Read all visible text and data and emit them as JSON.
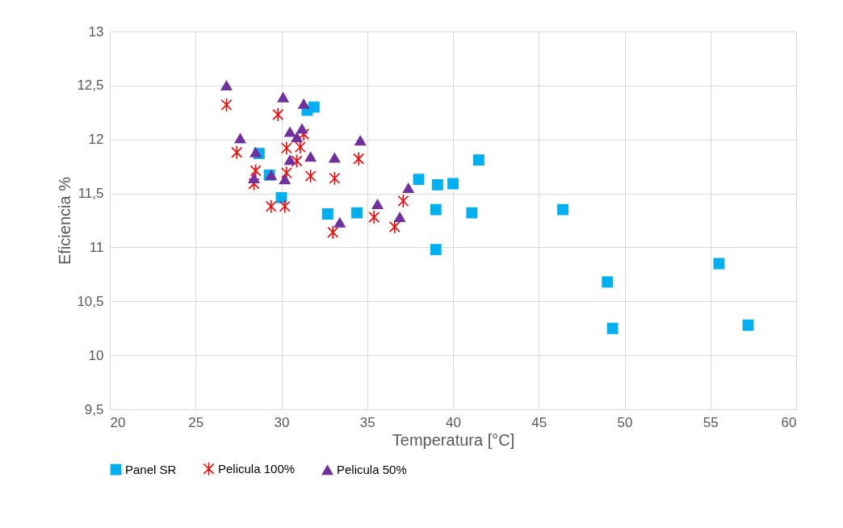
{
  "chart_data": {
    "type": "scatter",
    "xlabel": "Temperatura [°C]",
    "ylabel": "Eficiencia %",
    "xlim": [
      20,
      60
    ],
    "xticks": [
      20,
      25,
      30,
      35,
      40,
      45,
      50,
      55,
      60
    ],
    "ylim": [
      9.5,
      13
    ],
    "yticks": [
      {
        "value": 9.5,
        "label": "9,5"
      },
      10,
      {
        "value": 10.5,
        "label": "10,5"
      },
      11,
      {
        "value": 11.5,
        "label": "11,5"
      },
      12,
      {
        "value": 12.5,
        "label": "12,5"
      },
      13
    ],
    "grid": true,
    "legend": "bottom",
    "series": [
      {
        "name": "Panel SR",
        "color": "#00b0f0",
        "marker": "square",
        "x": [
          28.7,
          29.3,
          30.0,
          31.5,
          31.9,
          32.7,
          34.4,
          38.0,
          39.1,
          40.0,
          41.5,
          39.0,
          39.0,
          41.1,
          46.4,
          49.0,
          49.3,
          55.5,
          57.2
        ],
        "values": [
          11.87,
          11.67,
          11.46,
          12.27,
          12.3,
          11.31,
          11.32,
          11.63,
          11.58,
          11.59,
          11.81,
          11.35,
          10.98,
          11.32,
          11.35,
          10.68,
          10.25,
          10.85,
          10.28
        ]
      },
      {
        "name": "Pelicula 100%",
        "color": "#ff0000",
        "marker": "cross",
        "x": [
          26.8,
          27.4,
          28.5,
          28.4,
          29.8,
          29.4,
          30.3,
          30.2,
          31.1,
          30.9,
          30.3,
          31.3,
          31.7,
          33.1,
          34.5,
          33.0,
          35.4,
          36.6,
          37.1
        ],
        "values": [
          12.32,
          11.88,
          11.71,
          11.59,
          12.23,
          11.38,
          11.92,
          11.38,
          11.93,
          11.8,
          11.69,
          12.05,
          11.66,
          11.64,
          11.82,
          11.14,
          11.28,
          11.19,
          11.43
        ]
      },
      {
        "name": "Pelicula 50%",
        "color": "#7030a0",
        "marker": "triangle",
        "x": [
          26.8,
          27.6,
          28.5,
          28.4,
          29.4,
          30.1,
          30.5,
          30.9,
          31.2,
          31.3,
          30.5,
          30.2,
          31.7,
          33.1,
          34.6,
          33.4,
          35.6,
          36.9,
          37.4
        ],
        "values": [
          12.5,
          12.01,
          11.88,
          11.64,
          11.67,
          12.39,
          12.07,
          12.02,
          12.1,
          12.33,
          11.81,
          11.63,
          11.84,
          11.83,
          11.99,
          11.23,
          11.4,
          11.28,
          11.55
        ]
      }
    ]
  }
}
